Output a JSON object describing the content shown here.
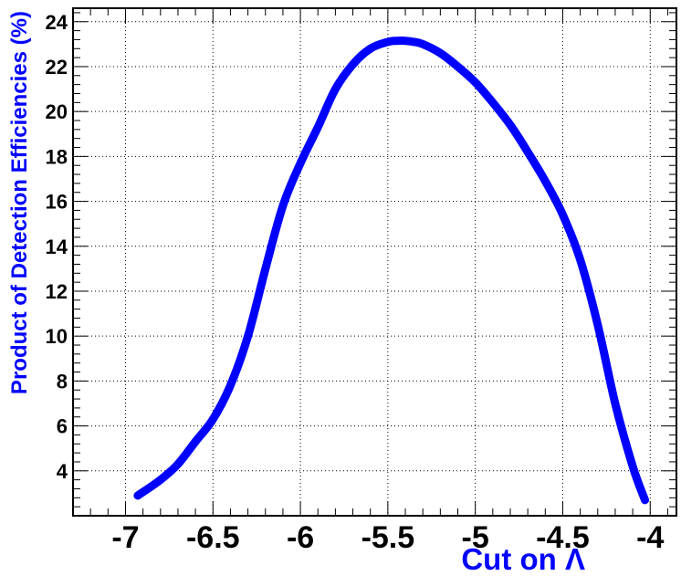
{
  "chart_data": {
    "type": "line",
    "title": "",
    "xlabel": "Cut on Λ",
    "ylabel": "Product of Detection Efficiencies (%)",
    "xlim": [
      -7.3,
      -3.85
    ],
    "ylim": [
      2.0,
      24.6
    ],
    "x_ticks": [
      -7,
      -6.5,
      -6,
      -5.5,
      -5,
      -4.5,
      -4
    ],
    "x_tick_labels": [
      "-7",
      "-6.5",
      "-6",
      "-5.5",
      "-5",
      "-4.5",
      "-4"
    ],
    "y_ticks": [
      4,
      6,
      8,
      10,
      12,
      14,
      16,
      18,
      20,
      22,
      24
    ],
    "y_tick_labels": [
      "4",
      "6",
      "8",
      "10",
      "12",
      "14",
      "16",
      "18",
      "20",
      "22",
      "24"
    ],
    "grid": true,
    "series": [
      {
        "color": "#0000ff",
        "x": [
          -6.93,
          -6.8,
          -6.7,
          -6.6,
          -6.5,
          -6.4,
          -6.3,
          -6.2,
          -6.1,
          -6.0,
          -5.9,
          -5.8,
          -5.7,
          -5.6,
          -5.5,
          -5.45,
          -5.4,
          -5.35,
          -5.3,
          -5.2,
          -5.1,
          -5.0,
          -4.9,
          -4.8,
          -4.7,
          -4.6,
          -4.5,
          -4.4,
          -4.3,
          -4.2,
          -4.1,
          -4.03
        ],
        "y": [
          2.9,
          3.6,
          4.3,
          5.3,
          6.3,
          7.8,
          10.0,
          13.0,
          15.8,
          17.7,
          19.3,
          21.0,
          22.1,
          22.8,
          23.1,
          23.15,
          23.15,
          23.1,
          23.0,
          22.6,
          22.0,
          21.3,
          20.4,
          19.4,
          18.2,
          16.9,
          15.4,
          13.4,
          10.5,
          7.0,
          4.2,
          2.7
        ]
      }
    ],
    "axis_title_color": "#0000ff",
    "grid_color": "#000000"
  }
}
